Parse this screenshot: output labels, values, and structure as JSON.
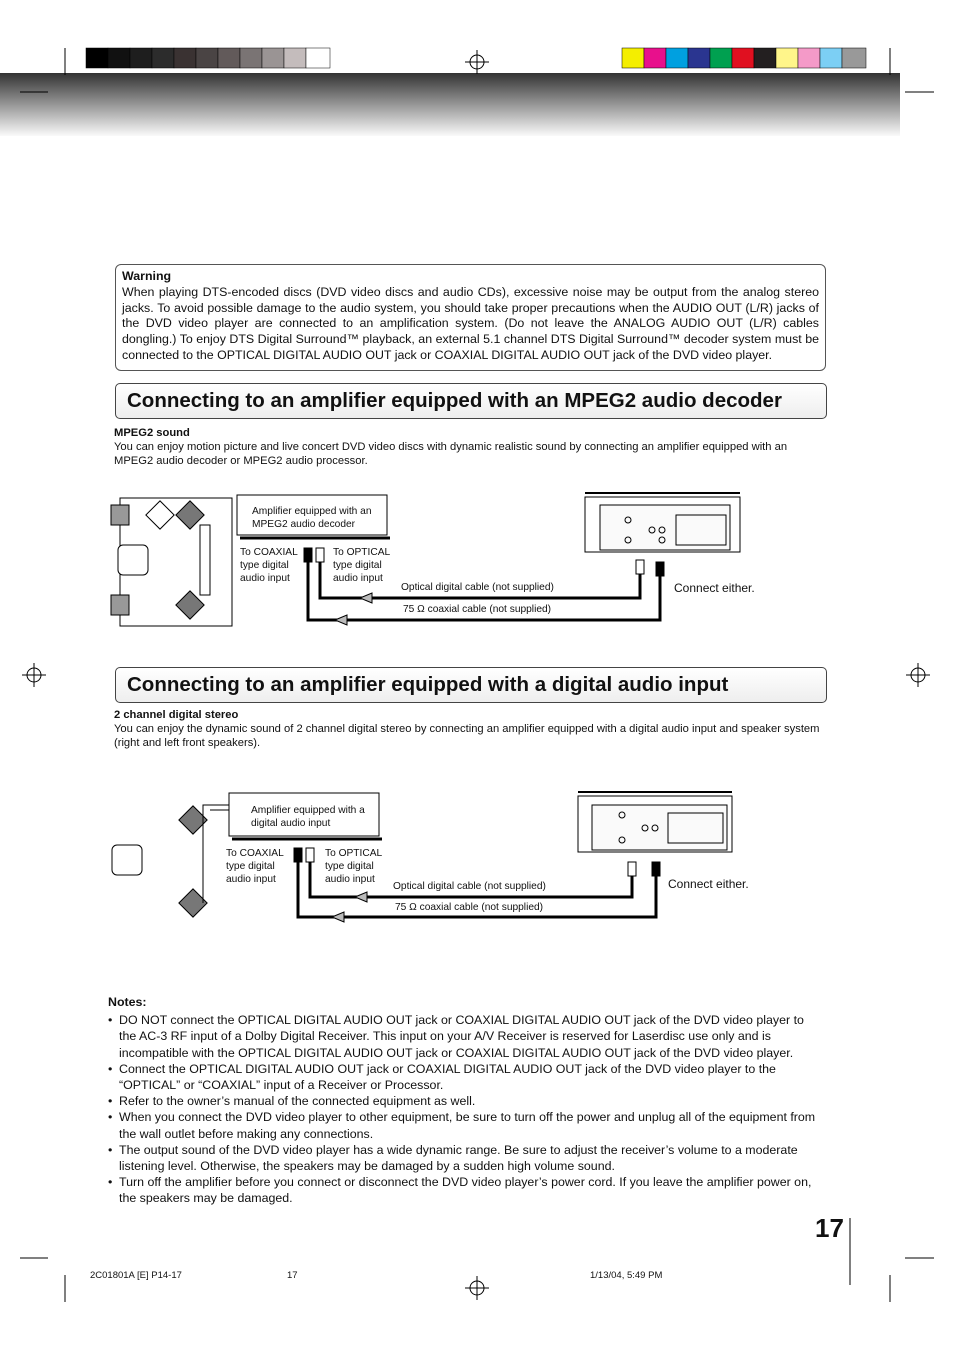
{
  "warning": {
    "title": "Warning",
    "text": "When playing DTS-encoded discs (DVD video discs and audio CDs), excessive noise may be output from the analog stereo jacks. To avoid possible damage to the audio system, you should take proper precautions when the AUDIO OUT (L/R) jacks of the DVD video player are connected to an amplification system. (Do not leave the ANALOG AUDIO OUT (L/R) cables dongling.) To enjoy DTS Digital Surround™ playback, an external 5.1 channel DTS Digital Surround™ decoder system must be connected to the OPTICAL DIGITAL AUDIO OUT jack or COAXIAL DIGITAL AUDIO OUT jack of the DVD video player."
  },
  "sections": [
    {
      "heading": "Connecting to an amplifier equipped with an MPEG2 audio decoder",
      "subheading": "MPEG2 sound",
      "text": "You can enjoy motion picture and live concert DVD video discs with dynamic realistic sound by connecting an amplifier equipped with an MPEG2 audio decoder or MPEG2 audio processor.",
      "diagram": {
        "amplifier": "Amplifier equipped with an MPEG2 audio decoder",
        "coaxial_input": "To COAXIAL type digital audio input",
        "optical_input": "To OPTICAL type digital audio input",
        "optical_cable": "Optical digital cable (not supplied)",
        "coaxial_cable": "75 Ω coaxial cable (not supplied)",
        "note": "Connect either."
      }
    },
    {
      "heading": "Connecting to an amplifier equipped with a digital audio input",
      "subheading": "2 channel digital stereo",
      "text": "You can enjoy the dynamic sound of 2 channel digital stereo by connecting an amplifier equipped with a digital audio input and speaker system (right and left front speakers).",
      "diagram": {
        "amplifier": "Amplifier equipped with a digital audio input",
        "coaxial_input": "To COAXIAL type digital audio input",
        "optical_input": "To OPTICAL type digital audio input",
        "optical_cable": "Optical digital cable (not supplied)",
        "coaxial_cable": "75 Ω coaxial cable (not supplied)",
        "note": "Connect either."
      }
    }
  ],
  "notes": {
    "title": "Notes:",
    "items": [
      "DO NOT connect the OPTICAL DIGITAL AUDIO OUT jack or COAXIAL DIGITAL AUDIO OUT jack of the DVD video player to the AC-3 RF input of a Dolby Digital Receiver.  This input on your A/V Receiver is reserved for Laserdisc use only and is incompatible with the OPTICAL DIGITAL AUDIO OUT jack or COAXIAL DIGITAL AUDIO OUT jack of the DVD video player.",
      "Connect the OPTICAL DIGITAL AUDIO OUT jack or COAXIAL DIGITAL AUDIO OUT jack of the DVD video player to the “OPTICAL” or “COAXIAL” input of a Receiver or Processor.",
      "Refer to the owner’s manual of the connected equipment as well.",
      "When you connect the DVD video player to other equipment, be sure to turn off the power and unplug all of the equipment from the wall outlet before making any connections.",
      "The output sound of the DVD video player has a wide dynamic range. Be sure to adjust the receiver’s volume to a moderate listening level. Otherwise, the speakers may be damaged by a sudden high volume sound.",
      "Turn off the amplifier before you connect or disconnect the DVD video player’s power cord. If you leave the amplifier power on, the speakers may be damaged."
    ]
  },
  "page_number": "17",
  "footer": {
    "file": "2C01801A [E] P14-17",
    "page": "17",
    "date": "1/13/04, 5:49 PM"
  }
}
